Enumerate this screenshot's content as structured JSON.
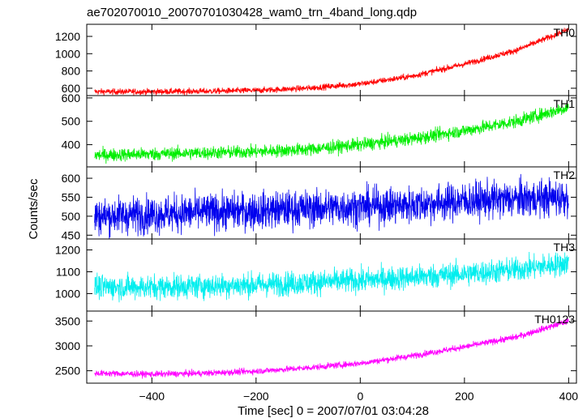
{
  "chart_data": {
    "type": "line",
    "title": "ae702070010_20070701030428_wam0_trn_4band_long.qdp",
    "xlabel": "Time [sec] 0 = 2007/07/01 03:04:28",
    "ylabel": "Counts/sec",
    "xlim": [
      -525,
      415
    ],
    "x_ticks": [
      -400,
      -200,
      0,
      200,
      400
    ],
    "grid": false,
    "panels": [
      {
        "name": "TH0",
        "color": "#ff0000",
        "ylim": [
          515,
          1340
        ],
        "y_ticks": [
          600,
          800,
          1000,
          1200
        ],
        "x": [
          -510,
          -400,
          -300,
          -200,
          -100,
          0,
          100,
          200,
          300,
          400
        ],
        "values": [
          560,
          560,
          565,
          575,
          600,
          650,
          740,
          880,
          1040,
          1280
        ],
        "noise": 25
      },
      {
        "name": "TH1",
        "color": "#00ee00",
        "ylim": [
          305,
          610
        ],
        "y_ticks": [
          400,
          500,
          600
        ],
        "x": [
          -510,
          -400,
          -300,
          -200,
          -100,
          0,
          100,
          200,
          300,
          400
        ],
        "values": [
          355,
          360,
          365,
          370,
          380,
          400,
          425,
          460,
          500,
          560
        ],
        "noise": 20
      },
      {
        "name": "TH2",
        "color": "#0000ee",
        "ylim": [
          440,
          630
        ],
        "y_ticks": [
          450,
          500,
          550,
          600
        ],
        "x": [
          -510,
          -400,
          -300,
          -200,
          -100,
          0,
          100,
          200,
          300,
          400
        ],
        "values": [
          500,
          505,
          510,
          515,
          520,
          525,
          530,
          540,
          545,
          550
        ],
        "noise": 35
      },
      {
        "name": "TH3",
        "color": "#00eeee",
        "ylim": [
          920,
          1250
        ],
        "y_ticks": [
          1000,
          1100,
          1200
        ],
        "x": [
          -510,
          -400,
          -300,
          -200,
          -100,
          0,
          100,
          200,
          300,
          400
        ],
        "values": [
          1030,
          1030,
          1035,
          1040,
          1050,
          1060,
          1075,
          1090,
          1110,
          1140
        ],
        "noise": 40
      },
      {
        "name": "TH0123",
        "color": "#ff00ff",
        "ylim": [
          2250,
          3700
        ],
        "y_ticks": [
          2500,
          3000,
          3500
        ],
        "x": [
          -510,
          -400,
          -300,
          -200,
          -100,
          0,
          100,
          200,
          300,
          400
        ],
        "values": [
          2450,
          2430,
          2450,
          2490,
          2560,
          2650,
          2800,
          2980,
          3180,
          3500
        ],
        "noise": 45
      }
    ]
  }
}
